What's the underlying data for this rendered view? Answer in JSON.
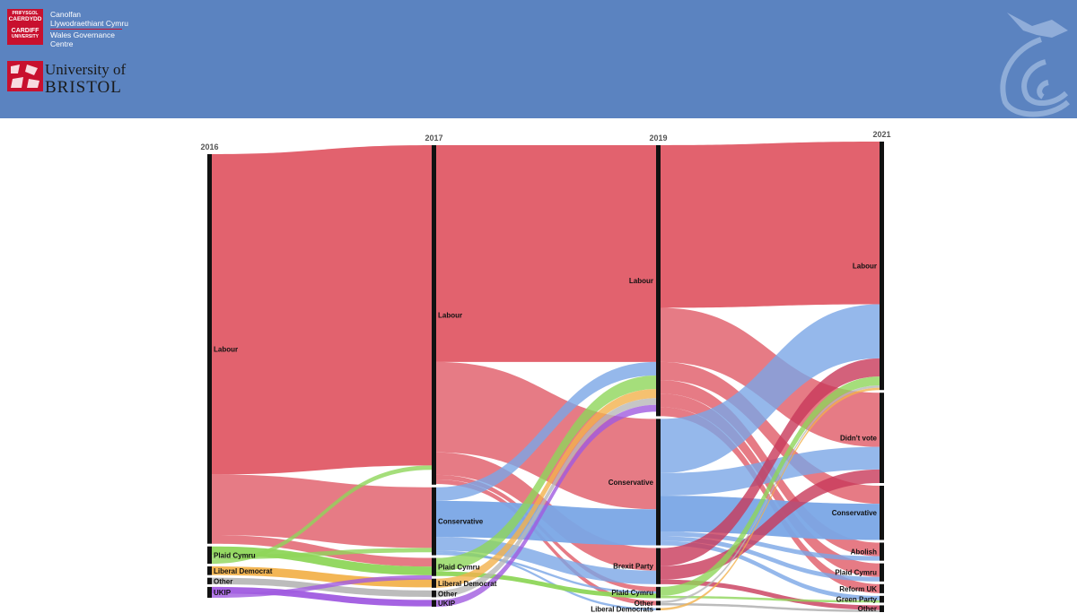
{
  "header": {
    "cardiff": {
      "logo_lines": [
        "PRIFYSGOL",
        "CAERDYDD",
        "CARDIFF",
        "UNIVERSITY"
      ],
      "text_lines": [
        "Canolfan",
        "Llywodraethiant Cymru",
        "Wales Governance",
        "Centre"
      ]
    },
    "bristol": {
      "line1": "University of",
      "line2": "BRISTOL"
    }
  },
  "colors": {
    "Labour": "#e05a66",
    "Conservative": "#7aa6e6",
    "Plaid Cymru": "#8ed65a",
    "Liberal Democrat": "#f2b24c",
    "Liberal Democrats": "#f2b24c",
    "Other": "#b8b8b8",
    "UKIP": "#a05be0",
    "Brexit Party": "#c83a5a",
    "Didn't vote": "#6ee0d0",
    "Abolish": "#6ee0d0",
    "Reform UK": "#888888",
    "Green Party": "#8ed65a"
  },
  "chart_data": {
    "type": "sankey",
    "columns": [
      {
        "year": "2016",
        "nodes": [
          {
            "name": "Labour",
            "value": 90
          },
          {
            "name": "Plaid Cymru",
            "value": 4
          },
          {
            "name": "Liberal Democrat",
            "value": 2
          },
          {
            "name": "Other",
            "value": 1.5
          },
          {
            "name": "UKIP",
            "value": 2.5
          }
        ]
      },
      {
        "year": "2017",
        "nodes": [
          {
            "name": "Labour",
            "value": 75
          },
          {
            "name": "Conservative",
            "value": 15
          },
          {
            "name": "Plaid Cymru",
            "value": 4
          },
          {
            "name": "Liberal Democrat",
            "value": 2
          },
          {
            "name": "Other",
            "value": 1.5
          },
          {
            "name": "UKIP",
            "value": 1.5
          }
        ]
      },
      {
        "year": "2019",
        "nodes": [
          {
            "name": "Labour",
            "value": 60
          },
          {
            "name": "Conservative",
            "value": 28
          },
          {
            "name": "Brexit Party",
            "value": 8
          },
          {
            "name": "Plaid Cymru",
            "value": 2.5
          },
          {
            "name": "Other",
            "value": 1
          },
          {
            "name": "Liberal Democrats",
            "value": 0.5
          }
        ]
      },
      {
        "year": "2021",
        "nodes": [
          {
            "name": "Labour",
            "value": 55
          },
          {
            "name": "Didn't vote",
            "value": 20
          },
          {
            "name": "Conservative",
            "value": 12
          },
          {
            "name": "Abolish",
            "value": 4
          },
          {
            "name": "Plaid Cymru",
            "value": 4
          },
          {
            "name": "Reform UK",
            "value": 2
          },
          {
            "name": "Green Party",
            "value": 1.5
          },
          {
            "name": "Other",
            "value": 1.5
          }
        ]
      }
    ],
    "flows": [
      [
        {
          "from": "Labour",
          "to": "Labour",
          "value": 74
        },
        {
          "from": "Labour",
          "to": "Conservative",
          "value": 14
        },
        {
          "from": "Labour",
          "to": "Plaid Cymru",
          "value": 2
        },
        {
          "from": "Plaid Cymru",
          "to": "Plaid Cymru",
          "value": 2
        },
        {
          "from": "Plaid Cymru",
          "to": "Conservative",
          "value": 1
        },
        {
          "from": "Plaid Cymru",
          "to": "Labour",
          "value": 1
        },
        {
          "from": "Liberal Democrat",
          "to": "Liberal Democrat",
          "value": 2
        },
        {
          "from": "Other",
          "to": "Other",
          "value": 1.5
        },
        {
          "from": "UKIP",
          "to": "UKIP",
          "value": 1.5
        },
        {
          "from": "UKIP",
          "to": "Plaid Cymru",
          "value": 1
        }
      ],
      [
        {
          "from": "Labour",
          "to": "Labour",
          "value": 48
        },
        {
          "from": "Labour",
          "to": "Conservative",
          "value": 20
        },
        {
          "from": "Labour",
          "to": "Brexit Party",
          "value": 5
        },
        {
          "from": "Labour",
          "to": "Plaid Cymru",
          "value": 1
        },
        {
          "from": "Labour",
          "to": "Other",
          "value": 1
        },
        {
          "from": "Conservative",
          "to": "Labour",
          "value": 3
        },
        {
          "from": "Conservative",
          "to": "Conservative",
          "value": 8
        },
        {
          "from": "Conservative",
          "to": "Brexit Party",
          "value": 3
        },
        {
          "from": "Conservative",
          "to": "Liberal Democrats",
          "value": 0.5
        },
        {
          "from": "Conservative",
          "to": "Plaid Cymru",
          "value": 0.5
        },
        {
          "from": "Plaid Cymru",
          "to": "Labour",
          "value": 3
        },
        {
          "from": "Plaid Cymru",
          "to": "Plaid Cymru",
          "value": 1
        },
        {
          "from": "Liberal Democrat",
          "to": "Labour",
          "value": 2
        },
        {
          "from": "Other",
          "to": "Labour",
          "value": 1.5
        },
        {
          "from": "UKIP",
          "to": "Labour",
          "value": 1.5
        }
      ],
      [
        {
          "from": "Labour",
          "to": "Labour",
          "value": 36
        },
        {
          "from": "Labour",
          "to": "Didn't vote",
          "value": 12
        },
        {
          "from": "Labour",
          "to": "Conservative",
          "value": 4
        },
        {
          "from": "Labour",
          "to": "Abolish",
          "value": 3
        },
        {
          "from": "Labour",
          "to": "Plaid Cymru",
          "value": 3
        },
        {
          "from": "Labour",
          "to": "Reform UK",
          "value": 2
        },
        {
          "from": "Conservative",
          "to": "Labour",
          "value": 12
        },
        {
          "from": "Conservative",
          "to": "Didn't vote",
          "value": 5
        },
        {
          "from": "Conservative",
          "to": "Conservative",
          "value": 8
        },
        {
          "from": "Conservative",
          "to": "Abolish",
          "value": 1
        },
        {
          "from": "Conservative",
          "to": "Plaid Cymru",
          "value": 1
        },
        {
          "from": "Conservative",
          "to": "Green Party",
          "value": 1
        },
        {
          "from": "Brexit Party",
          "to": "Labour",
          "value": 4
        },
        {
          "from": "Brexit Party",
          "to": "Didn't vote",
          "value": 3
        },
        {
          "from": "Brexit Party",
          "to": "Other",
          "value": 1
        },
        {
          "from": "Plaid Cymru",
          "to": "Labour",
          "value": 2
        },
        {
          "from": "Plaid Cymru",
          "to": "Green Party",
          "value": 0.5
        },
        {
          "from": "Other",
          "to": "Labour",
          "value": 0.5
        },
        {
          "from": "Other",
          "to": "Other",
          "value": 0.5
        },
        {
          "from": "Liberal Democrats",
          "to": "Labour",
          "value": 0.5
        }
      ]
    ]
  }
}
